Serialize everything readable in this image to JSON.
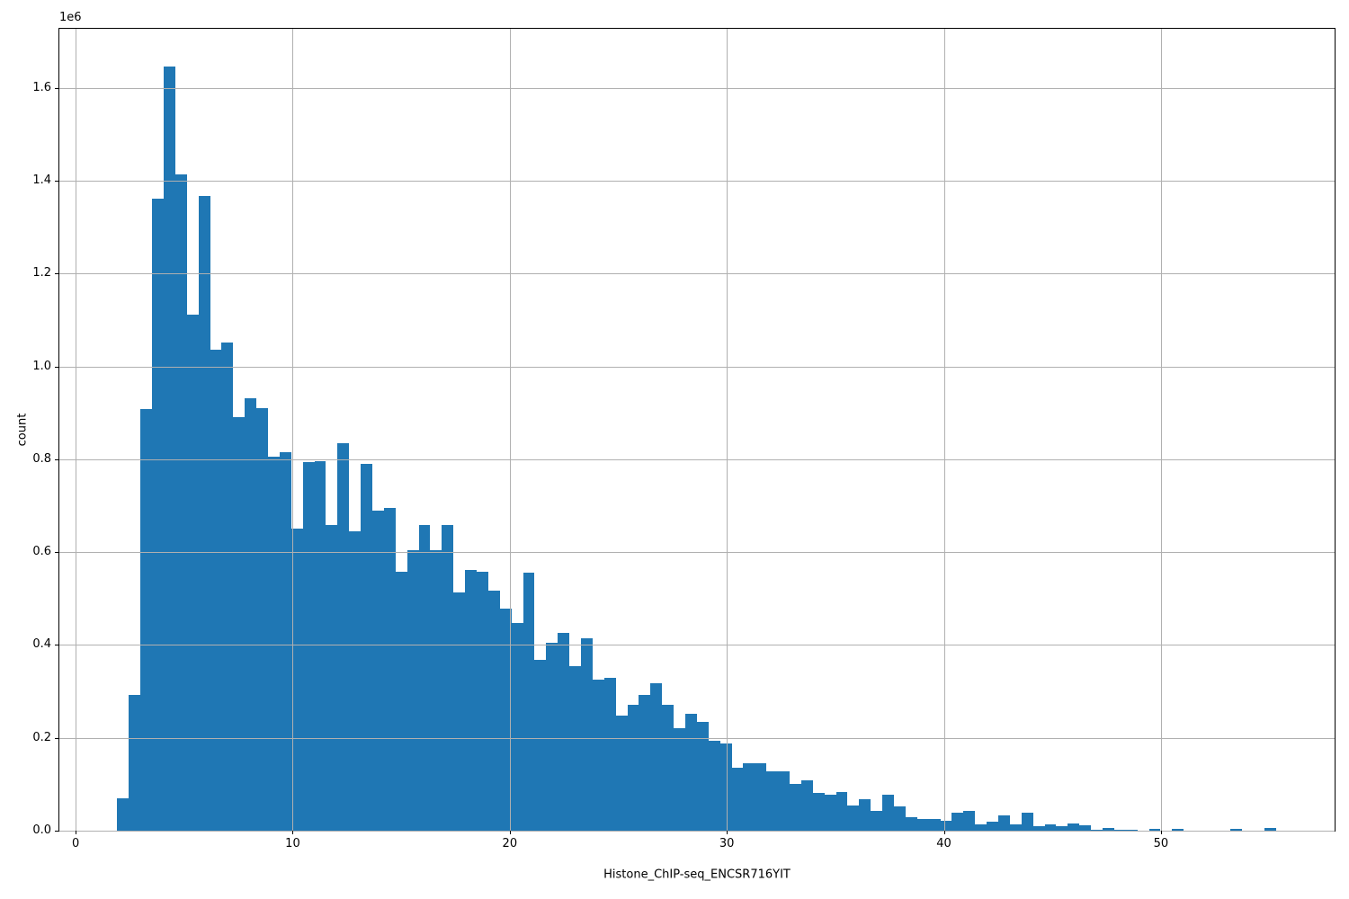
{
  "chart_data": {
    "type": "bar",
    "subtype": "histogram",
    "title": "",
    "xlabel": "Histone_ChIP-seq_ENCSR716YIT",
    "ylabel": "count",
    "offset_text": "1e6",
    "bar_color": "#1f77b4",
    "grid_color": "#b0b0b0",
    "spine_color": "#000000",
    "background_color": "#ffffff",
    "grid_on": true,
    "legend_position": "none",
    "bin_start": 1.92,
    "bin_width": 0.534,
    "xlim": [
      -0.75,
      58.0
    ],
    "ylim": [
      0,
      1727000
    ],
    "xticks": [
      0,
      10,
      20,
      30,
      40,
      50
    ],
    "xtick_labels": [
      "0",
      "10",
      "20",
      "30",
      "40",
      "50"
    ],
    "yticks": [
      0,
      200000,
      400000,
      600000,
      800000,
      1000000,
      1200000,
      1400000,
      1600000
    ],
    "ytick_labels": [
      "0.0",
      "0.2",
      "0.4",
      "0.6",
      "0.8",
      "1.0",
      "1.2",
      "1.4",
      "1.6"
    ],
    "counts": [
      69000,
      292000,
      909000,
      1361000,
      1646000,
      1413000,
      1111000,
      1366000,
      1035000,
      1052000,
      891000,
      932000,
      910000,
      806000,
      816000,
      650000,
      794000,
      796000,
      659000,
      834000,
      645000,
      790000,
      690000,
      695000,
      557000,
      605000,
      659000,
      605000,
      658000,
      514000,
      562000,
      558000,
      517000,
      478000,
      448000,
      556000,
      368000,
      405000,
      425000,
      354000,
      414000,
      325000,
      330000,
      248000,
      271000,
      293000,
      317000,
      271000,
      221000,
      251000,
      235000,
      193000,
      188000,
      135000,
      145000,
      145000,
      128000,
      128000,
      100000,
      108000,
      82000,
      77000,
      84000,
      54000,
      67000,
      43000,
      78000,
      52000,
      30000,
      26000,
      26000,
      22000,
      39000,
      43000,
      14000,
      19000,
      32000,
      14000,
      38000,
      10000,
      14000,
      10000,
      15500,
      12000,
      1000,
      5000,
      1000,
      1500,
      500,
      4000,
      300,
      4000,
      0,
      0,
      0,
      0,
      3500,
      0,
      0,
      6000
    ]
  }
}
